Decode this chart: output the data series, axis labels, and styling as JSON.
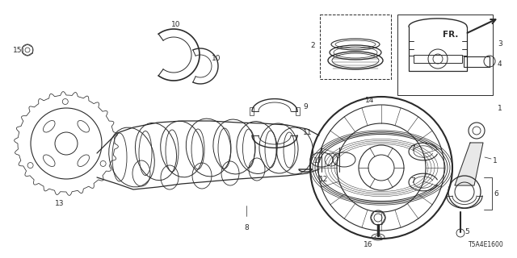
{
  "bg_color": "#ffffff",
  "line_color": "#2a2a2a",
  "diagram_code_text": "T5A4E1600",
  "fr_label": "FR.",
  "fig_w": 6.4,
  "fig_h": 3.2,
  "dpi": 100
}
